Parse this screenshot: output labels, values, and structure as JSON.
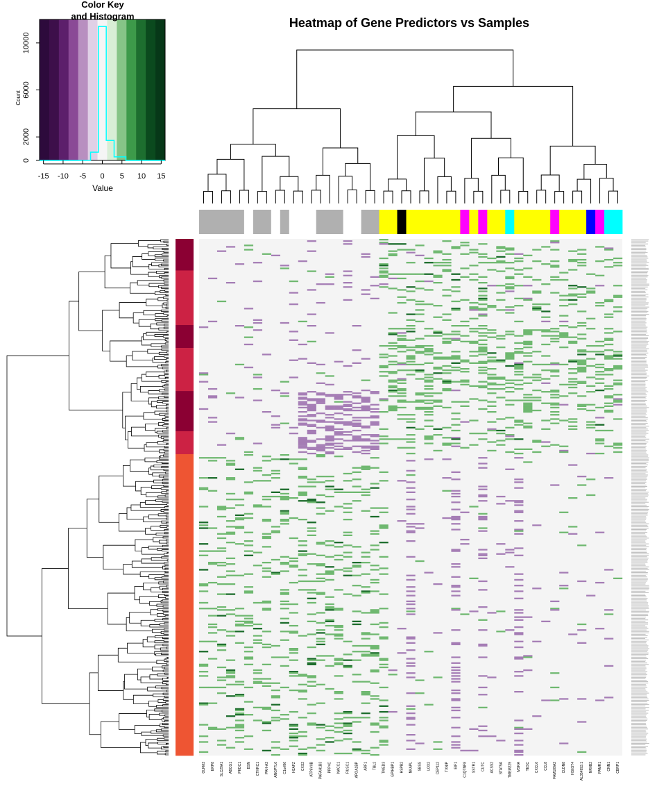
{
  "chart_data": [
    {
      "type": "heatmap",
      "title": "Heatmap of Gene Predictors vs Samples",
      "xlabel": "",
      "ylabel": "",
      "columns": [
        "OLFM3",
        "ERP8",
        "SLC29A1",
        "ABCG1",
        "PKDC1",
        "BSN",
        "CTHRC1",
        "PAH-A3",
        "ANGPTL6",
        "C1orf86",
        "H2AFZ",
        "CXS2",
        "ATP6V0B",
        "PAFAH1B3",
        "PPP4C",
        "NACC1",
        "RUSC1",
        "APOA1BP",
        "ARF1",
        "TBL2",
        "TMED3",
        "GPIHBP1",
        "HSPB2",
        "NKAPL",
        "SBSS",
        "LOX2",
        "CEP112",
        "TXNIP",
        "EIF1",
        "C1QTNF8",
        "SSTR1",
        "CUTC",
        "ACSS2",
        "STAT5A",
        "TMEM229",
        "MSRA",
        "TESC",
        "CXCL6",
        "CCL8",
        "FAM189A2",
        "CLDN8",
        "HS6ST4",
        "AL354993.1",
        "NR0B2",
        "PAMR1",
        "CNN1",
        "CBRP1"
      ],
      "column_colors": [
        "#b0b0b0",
        "#b0b0b0",
        "#b0b0b0",
        "#b0b0b0",
        "#b0b0b0",
        "#ffffff",
        "#b0b0b0",
        "#b0b0b0",
        "#ffffff",
        "#b0b0b0",
        "#ffffff",
        "#ffffff",
        "#ffffff",
        "#b0b0b0",
        "#b0b0b0",
        "#b0b0b0",
        "#ffffff",
        "#ffffff",
        "#b0b0b0",
        "#b0b0b0",
        "#ffff00",
        "#ffff00",
        "#000000",
        "#ffff00",
        "#ffff00",
        "#ffff00",
        "#ffff00",
        "#ffff00",
        "#ffff00",
        "#ff00ff",
        "#ffff00",
        "#ff00ff",
        "#ffff00",
        "#ffff00",
        "#00ffff",
        "#ffff00",
        "#ffff00",
        "#ffff00",
        "#ffff00",
        "#ff00ff",
        "#ffff00",
        "#ffff00",
        "#ffff00",
        "#0000ff",
        "#ff00ff",
        "#00ffff",
        "#00ffff"
      ],
      "row_groups": [
        {
          "color": "#8b0033",
          "rows": 22
        },
        {
          "color": "#cc2244",
          "rows": 38
        },
        {
          "color": "#8b0033",
          "rows": 16
        },
        {
          "color": "#cc2244",
          "rows": 30
        },
        {
          "color": "#8b0033",
          "rows": 28
        },
        {
          "color": "#cc2244",
          "rows": 16
        },
        {
          "color": "#ee5533",
          "rows": 210
        }
      ],
      "values_note": "",
      "color_key": {
        "title": "Color Key\nand Histogram",
        "xlabel": "Value",
        "ylabel": "Count",
        "x_ticks": [
          "-15",
          "-10",
          "-5",
          "0",
          "5",
          "10",
          "15"
        ],
        "y_ticks": [
          "0",
          "2000",
          "6000",
          "10000"
        ],
        "xlim": [
          -16,
          16
        ],
        "ylim": [
          0,
          12000
        ],
        "palette": [
          "#2d0a3c",
          "#3d0f4a",
          "#5c1f6b",
          "#8a4a96",
          "#b88fc0",
          "#e0d0e6",
          "#f5f5f5",
          "#d8eed6",
          "#86c487",
          "#3d9a4a",
          "#1d6e2f",
          "#0b4a1e",
          "#073818"
        ]
      },
      "palette_low": "#a57db5",
      "palette_mid": "#f4f4f4",
      "palette_high": "#6fb870",
      "palette_very_high": "#1a6b2a"
    }
  ],
  "figure": {
    "title": "Heatmap of Gene Predictors vs Samples",
    "colorkey_title_line1": "Color Key",
    "colorkey_title_line2": "and Histogram",
    "colorkey_xlabel": "Value",
    "colorkey_ylabel": "Count"
  }
}
